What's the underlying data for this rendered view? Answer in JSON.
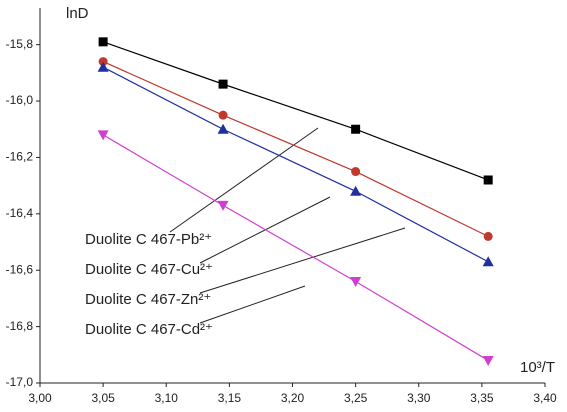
{
  "chart_data": {
    "type": "line",
    "y_label": "lnD",
    "x_label": "10³/T",
    "xlim": [
      3.0,
      3.4
    ],
    "xticks": [
      {
        "value": 3.0,
        "label": "3,00"
      },
      {
        "value": 3.05,
        "label": "3,05"
      },
      {
        "value": 3.1,
        "label": "3,10"
      },
      {
        "value": 3.15,
        "label": "3,15"
      },
      {
        "value": 3.2,
        "label": "3,20"
      },
      {
        "value": 3.25,
        "label": "3,25"
      },
      {
        "value": 3.3,
        "label": "3,30"
      },
      {
        "value": 3.35,
        "label": "3,35"
      },
      {
        "value": 3.4,
        "label": "3,40"
      }
    ],
    "ylim": [
      -17.0,
      -15.67
    ],
    "yticks": [
      {
        "value": -15.8,
        "label": "-15,8"
      },
      {
        "value": -16.0,
        "label": "-16,0"
      },
      {
        "value": -16.2,
        "label": "-16,2"
      },
      {
        "value": -16.4,
        "label": "-16,4"
      },
      {
        "value": -16.6,
        "label": "-16,6"
      },
      {
        "value": -16.8,
        "label": "-16,8"
      },
      {
        "value": -17.0,
        "label": "-17,0"
      }
    ],
    "x": [
      3.05,
      3.145,
      3.25,
      3.355
    ],
    "legend": "lower left",
    "series": [
      {
        "name": "Duolite C 467-Pb²⁺",
        "color": "#000000",
        "marker": "square",
        "values": [
          -15.79,
          -15.94,
          -16.1,
          -16.28
        ]
      },
      {
        "name": "Duolite C 467-Cu²⁺",
        "color": "#c0392b",
        "marker": "circle",
        "values": [
          -15.86,
          -16.05,
          -16.25,
          -16.48
        ]
      },
      {
        "name": "Duolite C 467-Zn²⁺",
        "color": "#1f2f9f",
        "marker": "triangle",
        "values": [
          -15.88,
          -16.1,
          -16.32,
          -16.57
        ]
      },
      {
        "name": "Duolite C 467-Cd²⁺",
        "color": "#d13fd1",
        "marker": "down-triangle",
        "values": [
          -16.12,
          -16.37,
          -16.64,
          -16.92
        ]
      }
    ]
  }
}
